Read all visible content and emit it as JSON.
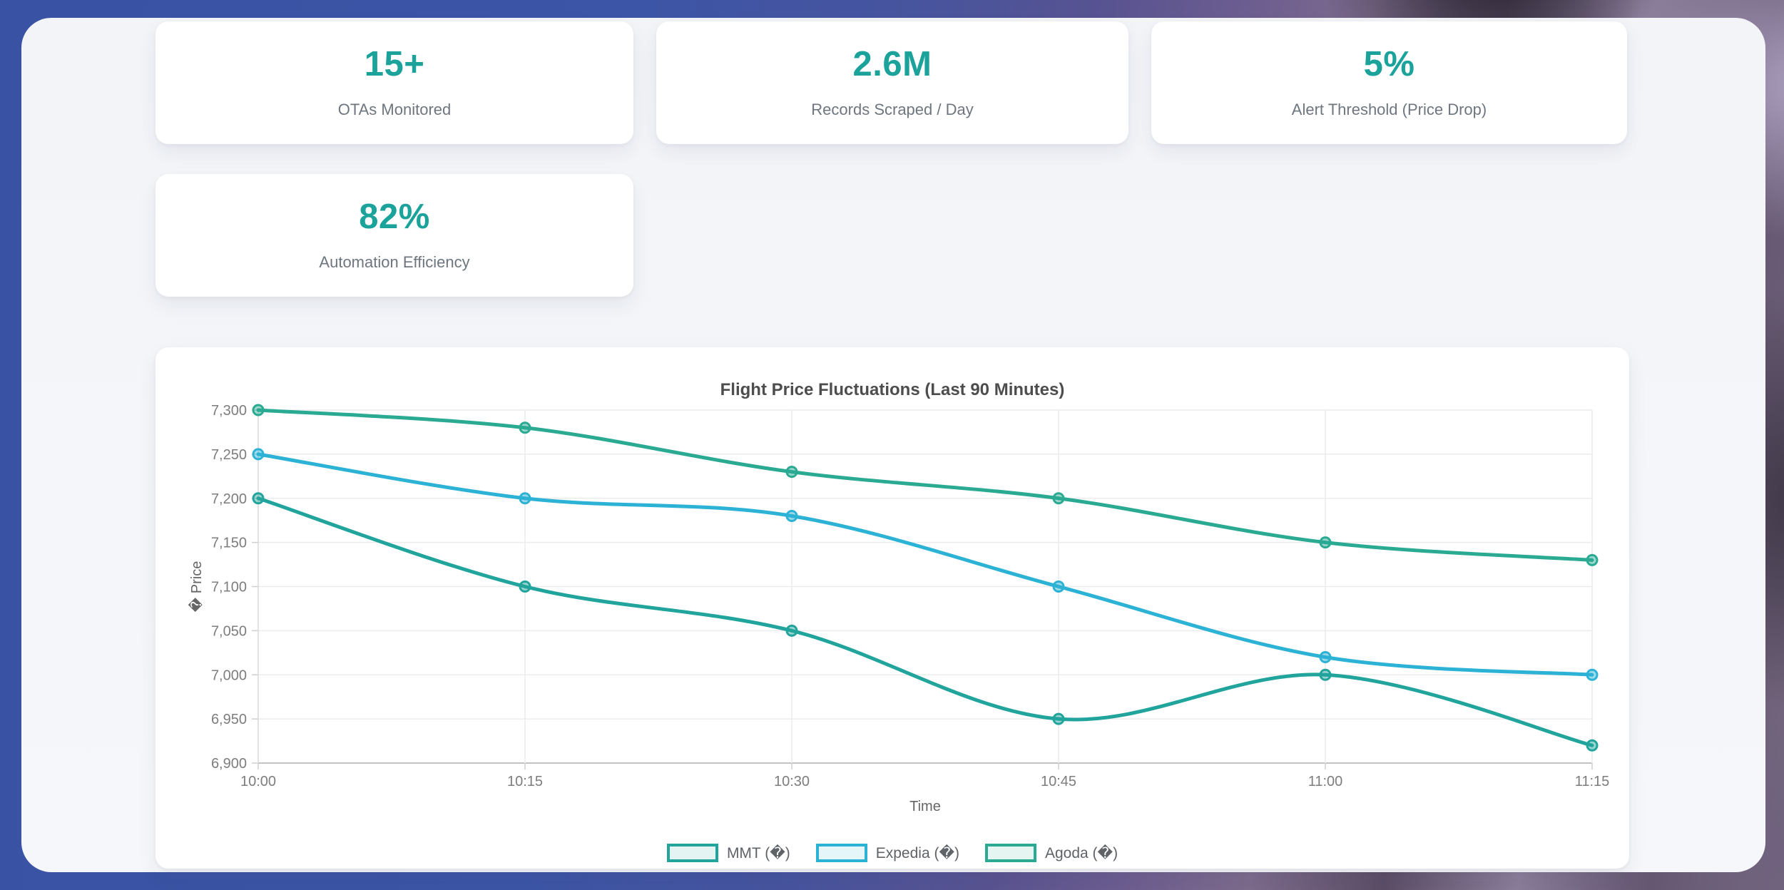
{
  "theme": {
    "accent": "#1ba29a",
    "frame_blue": "#3a52a3",
    "frame_purple": "#6f5c93",
    "container_bg": "#f4f6f9",
    "card_bg": "#ffffff"
  },
  "stats": [
    {
      "value": "15+",
      "label": "OTAs Monitored"
    },
    {
      "value": "2.6M",
      "label": "Records Scraped / Day"
    },
    {
      "value": "5%",
      "label": "Alert Threshold (Price Drop)"
    },
    {
      "value": "82%",
      "label": "Automation Efficiency"
    }
  ],
  "chart_data": {
    "type": "line",
    "title": "Flight Price Fluctuations (Last 90 Minutes)",
    "xlabel": "Time",
    "ylabel": "� Price",
    "categories": [
      "10:00",
      "10:15",
      "10:30",
      "10:45",
      "11:00",
      "11:15"
    ],
    "ylim": [
      6900,
      7300
    ],
    "ytick_step": 50,
    "grid": true,
    "legend_position": "bottom",
    "series": [
      {
        "name": "MMT (�)",
        "color": "#21a49c",
        "values": [
          7200,
          7100,
          7050,
          6950,
          7000,
          6920
        ]
      },
      {
        "name": "Expedia (�)",
        "color": "#2cb2d5",
        "values": [
          7250,
          7200,
          7180,
          7100,
          7020,
          7000
        ]
      },
      {
        "name": "Agoda (�)",
        "color": "#2aaa93",
        "values": [
          7300,
          7280,
          7230,
          7200,
          7150,
          7130
        ]
      }
    ]
  }
}
